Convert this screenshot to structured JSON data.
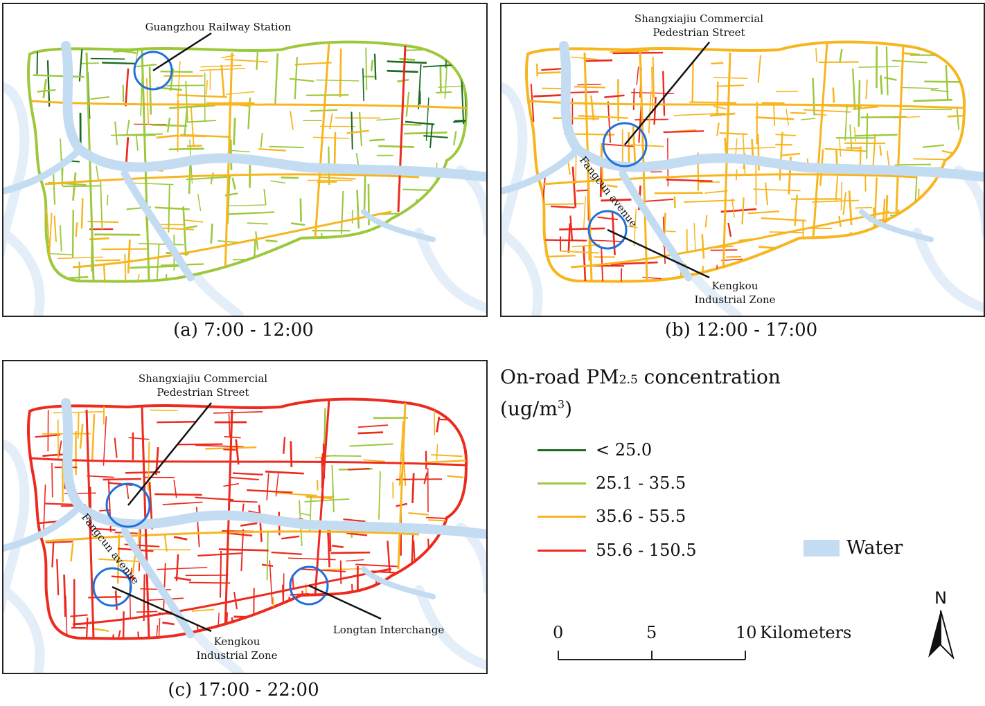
{
  "panels": [
    {
      "caption": "(a) 7:00 - 12:00",
      "annotations": [
        {
          "line1": "Guangzhou Railway Station",
          "line2": ""
        }
      ],
      "dominant_levels": [
        "25.1 - 35.5",
        "35.6 - 55.5"
      ]
    },
    {
      "caption": "(b) 12:00 - 17:00",
      "annotations": [
        {
          "line1": "Shangxiajiu Commercial",
          "line2": "Pedestrian Street"
        },
        {
          "line1": "Kengkou",
          "line2": "Industrial Zone"
        }
      ],
      "road_label": "Fangcun avenue",
      "dominant_levels": [
        "35.6 - 55.5",
        "55.6 - 150.5"
      ]
    },
    {
      "caption": "(c) 17:00 - 22:00",
      "annotations": [
        {
          "line1": "Shangxiajiu Commercial",
          "line2": "Pedestrian Street"
        },
        {
          "line1": "Kengkou",
          "line2": "Industrial Zone"
        },
        {
          "line1": "Longtan Interchange",
          "line2": ""
        }
      ],
      "road_label": "Fangcun avenue",
      "dominant_levels": [
        "55.6 - 150.5",
        "35.6 - 55.5"
      ]
    }
  ],
  "legend": {
    "title_main": "On-road PM",
    "title_sub": "2.5",
    "title_rest": " concentration",
    "unit_pre": "(ug/m",
    "unit_sup": "3",
    "unit_post": ")",
    "classes": [
      {
        "label": "< 25.0",
        "color": "#1a6b1f"
      },
      {
        "label": "25.1 - 35.5",
        "color": "#9cc83c"
      },
      {
        "label": "35.6 - 55.5",
        "color": "#f7b51e"
      },
      {
        "label": "55.6 - 150.5",
        "color": "#ec2a1e"
      }
    ],
    "water_label": "Water",
    "water_color": "#c3dcf2"
  },
  "scale_bar": {
    "ticks": [
      "0",
      "5",
      "10"
    ],
    "unit": "Kilometers"
  },
  "north_arrow": {
    "label": "N"
  }
}
